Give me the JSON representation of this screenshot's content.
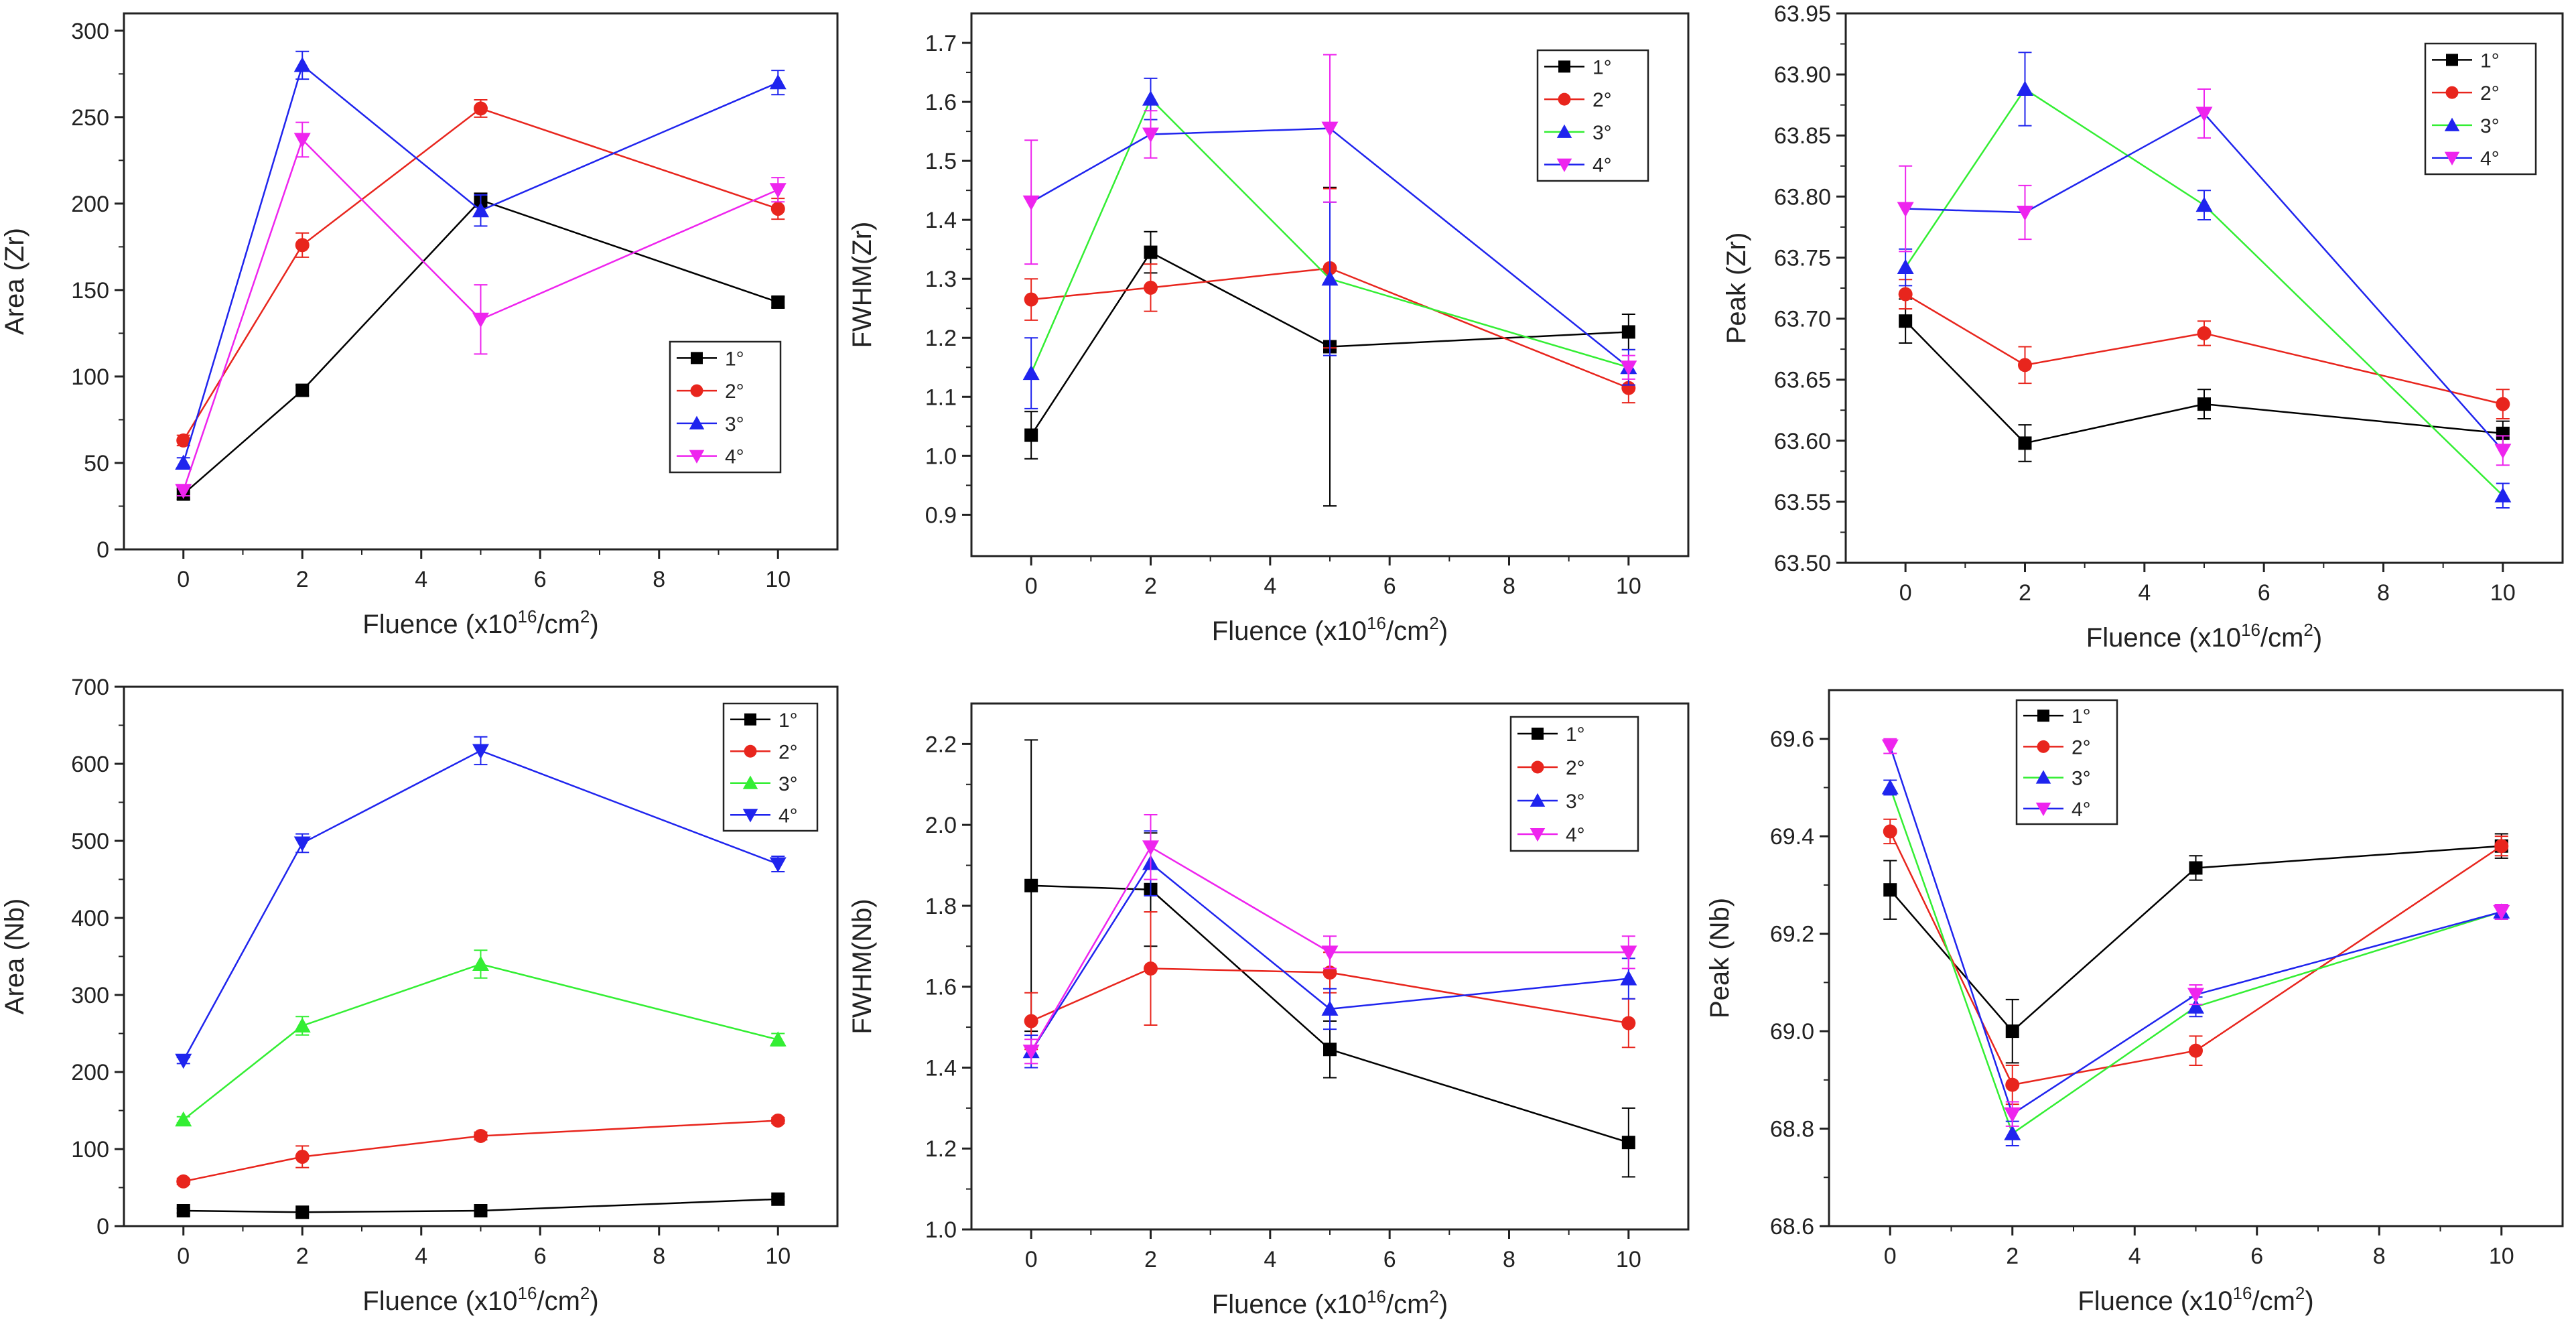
{
  "colors": {
    "1": "#000000",
    "2": "#e8251d",
    "3": "#1f24ee",
    "4": "#ee24ee",
    "3g": "#33ee33",
    "axis": "#222222"
  },
  "chart_data": [
    {
      "type": "line",
      "xlabel_main": "Fluence (x10",
      "xlabel_sup1": "16",
      "xlabel_mid": "/cm",
      "xlabel_sup2": "2",
      "xlabel_end": ")",
      "ylabel": "Area (Zr)",
      "xlim": [
        -1,
        11
      ],
      "ylim": [
        0,
        310
      ],
      "xticks": [
        0,
        2,
        4,
        6,
        8,
        10
      ],
      "yticks": [
        0,
        50,
        100,
        150,
        200,
        250,
        300
      ],
      "ytick_labels": [
        "0",
        "50",
        "100",
        "150",
        "200",
        "250",
        "300"
      ],
      "legend_position": "center-right",
      "series": [
        {
          "name": "1°",
          "marker": "square",
          "color": "#000000",
          "x": [
            0,
            2,
            5,
            10
          ],
          "y": [
            32,
            92,
            202,
            143
          ],
          "err": [
            3,
            3,
            4,
            3
          ]
        },
        {
          "name": "2°",
          "marker": "circle",
          "color": "#e8251d",
          "x": [
            0,
            2,
            5,
            10
          ],
          "y": [
            63,
            176,
            255,
            197
          ],
          "err": [
            3,
            7,
            5,
            6
          ]
        },
        {
          "name": "3°",
          "marker": "triangle-up",
          "color": "#1f24ee",
          "x": [
            0,
            2,
            5,
            10
          ],
          "y": [
            50,
            280,
            196,
            270
          ],
          "err": [
            3,
            8,
            9,
            7
          ]
        },
        {
          "name": "4°",
          "marker": "triangle-down",
          "color": "#ee24ee",
          "x": [
            0,
            2,
            5,
            10
          ],
          "y": [
            34,
            237,
            133,
            208
          ],
          "err": [
            3,
            10,
            20,
            7
          ]
        }
      ]
    },
    {
      "type": "line",
      "xlabel_main": "Fluence (x10",
      "xlabel_sup1": "16",
      "xlabel_mid": "/cm",
      "xlabel_sup2": "2",
      "xlabel_end": ")",
      "ylabel": "FWHM(Zr)",
      "xlim": [
        -1,
        11
      ],
      "ylim": [
        0.83,
        1.75
      ],
      "xticks": [
        0,
        2,
        4,
        6,
        8,
        10
      ],
      "yticks": [
        0.9,
        1.0,
        1.1,
        1.2,
        1.3,
        1.4,
        1.5,
        1.6,
        1.7
      ],
      "ytick_labels": [
        "0.9",
        "1.0",
        "1.1",
        "1.2",
        "1.3",
        "1.4",
        "1.5",
        "1.6",
        "1.7"
      ],
      "legend_position": "top-right",
      "series": [
        {
          "name": "1°",
          "marker": "square",
          "color": "#000000",
          "x": [
            0,
            2,
            5,
            10
          ],
          "y": [
            1.035,
            1.345,
            1.185,
            1.21
          ],
          "err": [
            0.04,
            0.035,
            0.27,
            0.03
          ]
        },
        {
          "name": "2°",
          "marker": "circle",
          "color": "#e8251d",
          "x": [
            0,
            2,
            5,
            10
          ],
          "y": [
            1.265,
            1.285,
            1.318,
            1.115
          ],
          "err": [
            0.035,
            0.04,
            0.135,
            0.025
          ]
        },
        {
          "name": "3°",
          "marker": "triangle-up",
          "color": "#1f24ee",
          "lineColor": "#33ee33",
          "x": [
            0,
            2,
            5,
            10
          ],
          "y": [
            1.14,
            1.605,
            1.3,
            1.15
          ],
          "err": [
            0.06,
            0.035,
            0.13,
            0.03
          ]
        },
        {
          "name": "4°",
          "marker": "triangle-down",
          "color": "#ee24ee",
          "lineColor": "#1f24ee",
          "x": [
            0,
            2,
            5,
            10
          ],
          "y": [
            1.43,
            1.545,
            1.555,
            1.15
          ],
          "err": [
            0.105,
            0.04,
            0.125,
            0.02
          ]
        }
      ]
    },
    {
      "type": "line",
      "xlabel_main": "Fluence (x10",
      "xlabel_sup1": "16",
      "xlabel_mid": "/cm",
      "xlabel_sup2": "2",
      "xlabel_end": ")",
      "ylabel": "Peak (Zr)",
      "xlim": [
        -1,
        11
      ],
      "ylim": [
        63.5,
        63.95
      ],
      "xticks": [
        0,
        2,
        4,
        6,
        8,
        10
      ],
      "yticks": [
        63.5,
        63.55,
        63.6,
        63.65,
        63.7,
        63.75,
        63.8,
        63.85,
        63.9,
        63.95
      ],
      "ytick_labels": [
        "63.50",
        "63.55",
        "63.60",
        "63.65",
        "63.70",
        "63.75",
        "63.80",
        "63.85",
        "63.90",
        "63.95"
      ],
      "legend_position": "top-right",
      "series": [
        {
          "name": "1°",
          "marker": "square",
          "color": "#000000",
          "x": [
            0,
            2,
            5,
            10
          ],
          "y": [
            63.698,
            63.598,
            63.63,
            63.606
          ],
          "err": [
            0.018,
            0.015,
            0.012,
            0.01
          ]
        },
        {
          "name": "2°",
          "marker": "circle",
          "color": "#e8251d",
          "x": [
            0,
            2,
            5,
            10
          ],
          "y": [
            63.72,
            63.662,
            63.688,
            63.63
          ],
          "err": [
            0.012,
            0.015,
            0.01,
            0.012
          ]
        },
        {
          "name": "3°",
          "marker": "triangle-up",
          "color": "#1f24ee",
          "lineColor": "#33ee33",
          "x": [
            0,
            2,
            5,
            10
          ],
          "y": [
            63.742,
            63.888,
            63.793,
            63.555
          ],
          "err": [
            0.015,
            0.03,
            0.012,
            0.01
          ]
        },
        {
          "name": "4°",
          "marker": "triangle-down",
          "color": "#ee24ee",
          "lineColor": "#1f24ee",
          "x": [
            0,
            2,
            5,
            10
          ],
          "y": [
            63.79,
            63.787,
            63.868,
            63.592
          ],
          "err": [
            0.035,
            0.022,
            0.02,
            0.012
          ]
        }
      ]
    },
    {
      "type": "line",
      "xlabel_main": "Fluence (x10",
      "xlabel_sup1": "16",
      "xlabel_mid": "/cm",
      "xlabel_sup2": "2",
      "xlabel_end": ")",
      "ylabel": "Area (Nb)",
      "xlim": [
        -1,
        11
      ],
      "ylim": [
        0,
        700
      ],
      "xticks": [
        0,
        2,
        4,
        6,
        8,
        10
      ],
      "yticks": [
        0,
        100,
        200,
        300,
        400,
        500,
        600,
        700
      ],
      "ytick_labels": [
        "0",
        "100",
        "200",
        "300",
        "400",
        "500",
        "600",
        "700"
      ],
      "legend_position": "top-right",
      "series": [
        {
          "name": "1°",
          "marker": "square",
          "color": "#000000",
          "x": [
            0,
            2,
            5,
            10
          ],
          "y": [
            20,
            18,
            20,
            35
          ],
          "err": [
            3,
            3,
            3,
            3
          ]
        },
        {
          "name": "2°",
          "marker": "circle",
          "color": "#e8251d",
          "x": [
            0,
            2,
            5,
            10
          ],
          "y": [
            58,
            90,
            117,
            137
          ],
          "err": [
            4,
            14,
            5,
            4
          ]
        },
        {
          "name": "3°",
          "marker": "triangle-up",
          "color": "#33ee33",
          "x": [
            0,
            2,
            5,
            10
          ],
          "y": [
            138,
            260,
            340,
            242
          ],
          "err": [
            4,
            12,
            18,
            8
          ]
        },
        {
          "name": "4°",
          "marker": "triangle-down",
          "color": "#1f24ee",
          "x": [
            0,
            2,
            5,
            10
          ],
          "y": [
            215,
            497,
            617,
            470
          ],
          "err": [
            4,
            12,
            18,
            10
          ]
        }
      ]
    },
    {
      "type": "line",
      "xlabel_main": "Fluence (x10",
      "xlabel_sup1": "16",
      "xlabel_mid": "/cm",
      "xlabel_sup2": "2",
      "xlabel_end": ")",
      "ylabel": "FWHM(Nb)",
      "xlim": [
        -1,
        11
      ],
      "ylim": [
        1.0,
        2.3
      ],
      "xticks": [
        0,
        2,
        4,
        6,
        8,
        10
      ],
      "yticks": [
        1.0,
        1.2,
        1.4,
        1.6,
        1.8,
        2.0,
        2.2
      ],
      "ytick_labels": [
        "1.0",
        "1.2",
        "1.4",
        "1.6",
        "1.8",
        "2.0",
        "2.2"
      ],
      "legend_position": "top-right",
      "series": [
        {
          "name": "1°",
          "marker": "square",
          "color": "#000000",
          "x": [
            0,
            2,
            5,
            10
          ],
          "y": [
            1.85,
            1.84,
            1.445,
            1.215
          ],
          "err": [
            0.36,
            0.14,
            0.07,
            0.085
          ]
        },
        {
          "name": "2°",
          "marker": "circle",
          "color": "#e8251d",
          "x": [
            0,
            2,
            5,
            10
          ],
          "y": [
            1.515,
            1.645,
            1.635,
            1.51
          ],
          "err": [
            0.07,
            0.14,
            0.05,
            0.06
          ]
        },
        {
          "name": "3°",
          "marker": "triangle-up",
          "color": "#1f24ee",
          "x": [
            0,
            2,
            5,
            10
          ],
          "y": [
            1.44,
            1.905,
            1.545,
            1.62
          ],
          "err": [
            0.04,
            0.08,
            0.05,
            0.05
          ]
        },
        {
          "name": "4°",
          "marker": "triangle-down",
          "color": "#ee24ee",
          "x": [
            0,
            2,
            5,
            10
          ],
          "y": [
            1.44,
            1.945,
            1.685,
            1.685
          ],
          "err": [
            0.03,
            0.08,
            0.04,
            0.04
          ]
        }
      ]
    },
    {
      "type": "line",
      "xlabel_main": "Fluence (x10",
      "xlabel_sup1": "16",
      "xlabel_mid": "/cm",
      "xlabel_sup2": "2",
      "xlabel_end": ")",
      "ylabel": "Peak (Nb)",
      "xlim": [
        -1,
        11
      ],
      "ylim": [
        68.6,
        69.7
      ],
      "xticks": [
        0,
        2,
        4,
        6,
        8,
        10
      ],
      "yticks": [
        68.6,
        68.8,
        69.0,
        69.2,
        69.4,
        69.6
      ],
      "ytick_labels": [
        "68.6",
        "68.8",
        "69.0",
        "69.2",
        "69.4",
        "69.6"
      ],
      "legend_position": "top-left",
      "series": [
        {
          "name": "1°",
          "marker": "square",
          "color": "#000000",
          "x": [
            0,
            2,
            5,
            10
          ],
          "y": [
            69.29,
            69.0,
            69.335,
            69.38
          ],
          "err": [
            0.06,
            0.065,
            0.025,
            0.025
          ]
        },
        {
          "name": "2°",
          "marker": "circle",
          "color": "#e8251d",
          "x": [
            0,
            2,
            5,
            10
          ],
          "y": [
            69.41,
            68.89,
            68.96,
            69.38
          ],
          "err": [
            0.025,
            0.04,
            0.03,
            0.02
          ]
        },
        {
          "name": "3°",
          "marker": "triangle-up",
          "color": "#1f24ee",
          "lineColor": "#33ee33",
          "x": [
            0,
            2,
            5,
            10
          ],
          "y": [
            69.5,
            68.79,
            69.05,
            69.245
          ],
          "err": [
            0.015,
            0.025,
            0.02,
            0.015
          ]
        },
        {
          "name": "4°",
          "marker": "triangle-down",
          "color": "#ee24ee",
          "lineColor": "#1f24ee",
          "x": [
            0,
            2,
            5,
            10
          ],
          "y": [
            69.585,
            68.83,
            69.075,
            69.245
          ],
          "err": [
            0.015,
            0.025,
            0.02,
            0.015
          ]
        }
      ]
    }
  ]
}
